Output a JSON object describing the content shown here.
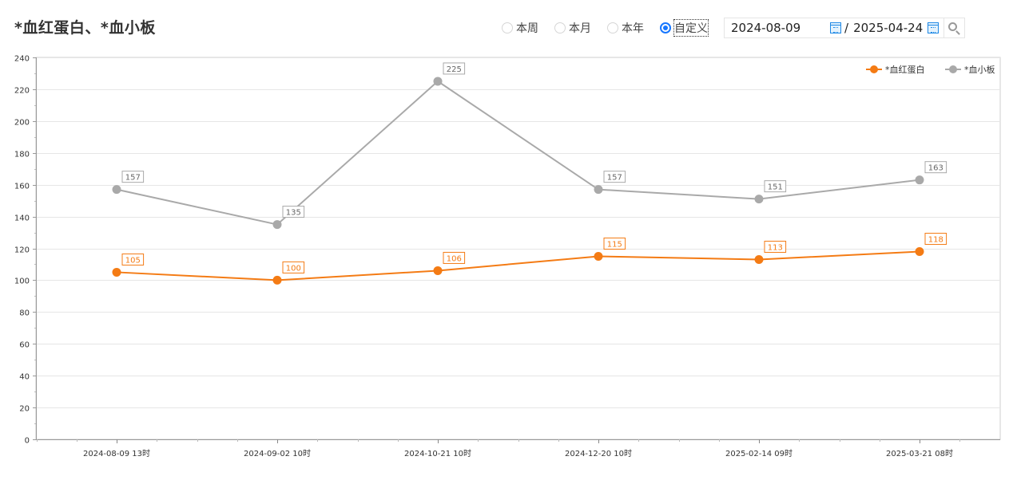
{
  "header": {
    "title": "*血红蛋白、*血小板"
  },
  "filters": {
    "options": [
      {
        "label": "本周",
        "selected": false
      },
      {
        "label": "本月",
        "selected": false
      },
      {
        "label": "本年",
        "selected": false
      },
      {
        "label": "自定义",
        "selected": true
      }
    ],
    "start_date": "2024-08-09",
    "separator": "/",
    "end_date": "2025-04-24"
  },
  "chart_data": {
    "type": "line",
    "categories": [
      "2024-08-09 13时",
      "2024-09-02 10时",
      "2024-10-21 10时",
      "2024-12-20 10时",
      "2025-02-14 09时",
      "2025-03-21 08时"
    ],
    "series": [
      {
        "name": "*血红蛋白",
        "color": "#f47b14",
        "values": [
          105,
          100,
          106,
          115,
          113,
          118
        ]
      },
      {
        "name": "*血小板",
        "color": "#a9a9a9",
        "values": [
          157,
          135,
          225,
          157,
          151,
          163
        ]
      }
    ],
    "ylim": [
      0,
      240
    ],
    "yticks": [
      0,
      20,
      40,
      60,
      80,
      100,
      120,
      140,
      160,
      180,
      200,
      220,
      240
    ],
    "grid": true,
    "legend_position": "top-right"
  }
}
